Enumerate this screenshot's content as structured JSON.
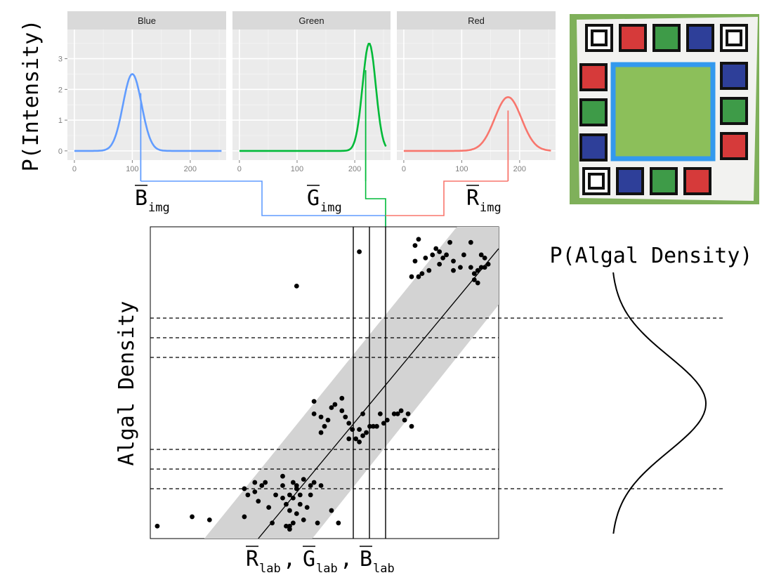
{
  "colors": {
    "blue": "#619CFF",
    "green": "#00BA38",
    "red": "#F8766D",
    "panel_bg": "#EBEBEB",
    "strip_bg": "#D9D9D9",
    "band": "#D3D3D3",
    "photo_border": "#3399EE"
  },
  "histograms": {
    "y_axis_label": "P(Intensity)",
    "y_ticks": [
      "0",
      "1",
      "2",
      "3"
    ],
    "x_ticks": [
      "0",
      "100",
      "200"
    ],
    "panels": [
      {
        "name": "Blue",
        "color": "blue",
        "mean": 100,
        "sd": 16,
        "peak": 2.5,
        "mean_label_main": "B",
        "mean_label_sub": "img"
      },
      {
        "name": "Green",
        "color": "green",
        "mean": 225,
        "sd": 11.5,
        "peak": 3.5,
        "mean_label_main": "G",
        "mean_label_sub": "img"
      },
      {
        "name": "Red",
        "color": "red",
        "mean": 180,
        "sd": 23,
        "peak": 1.75,
        "mean_label_main": "R",
        "mean_label_sub": "img"
      }
    ]
  },
  "scatter": {
    "y_label": "Algal Density",
    "x_label": {
      "parts": [
        {
          "main": "R",
          "sub": "lab"
        },
        {
          "main": "G",
          "sub": "lab"
        },
        {
          "main": "B",
          "sub": "lab"
        }
      ],
      "separator": ","
    },
    "points": [
      [
        0.02,
        0.04
      ],
      [
        0.12,
        0.07
      ],
      [
        0.17,
        0.06
      ],
      [
        0.27,
        0.07
      ],
      [
        0.27,
        0.16
      ],
      [
        0.28,
        0.14
      ],
      [
        0.3,
        0.15
      ],
      [
        0.3,
        0.18
      ],
      [
        0.31,
        0.12
      ],
      [
        0.32,
        0.17
      ],
      [
        0.33,
        0.18
      ],
      [
        0.34,
        0.1
      ],
      [
        0.35,
        0.05
      ],
      [
        0.36,
        0.14
      ],
      [
        0.38,
        0.13
      ],
      [
        0.38,
        0.17
      ],
      [
        0.39,
        0.11
      ],
      [
        0.38,
        0.2
      ],
      [
        0.4,
        0.14
      ],
      [
        0.41,
        0.13
      ],
      [
        0.4,
        0.09
      ],
      [
        0.41,
        0.18
      ],
      [
        0.42,
        0.17
      ],
      [
        0.42,
        0.16
      ],
      [
        0.43,
        0.14
      ],
      [
        0.43,
        0.11
      ],
      [
        0.44,
        0.19
      ],
      [
        0.45,
        0.1
      ],
      [
        0.46,
        0.14
      ],
      [
        0.46,
        0.17
      ],
      [
        0.47,
        0.18
      ],
      [
        0.44,
        0.06
      ],
      [
        0.4,
        0.04
      ],
      [
        0.49,
        0.17
      ],
      [
        0.48,
        0.05
      ],
      [
        0.39,
        0.04
      ],
      [
        0.4,
        0.03
      ],
      [
        0.41,
        0.05
      ],
      [
        0.42,
        0.08
      ],
      [
        0.52,
        0.09
      ],
      [
        0.54,
        0.05
      ],
      [
        0.47,
        0.4
      ],
      [
        0.49,
        0.39
      ],
      [
        0.47,
        0.44
      ],
      [
        0.49,
        0.34
      ],
      [
        0.51,
        0.38
      ],
      [
        0.5,
        0.36
      ],
      [
        0.52,
        0.42
      ],
      [
        0.53,
        0.43
      ],
      [
        0.55,
        0.45
      ],
      [
        0.56,
        0.39
      ],
      [
        0.57,
        0.37
      ],
      [
        0.55,
        0.41
      ],
      [
        0.58,
        0.35
      ],
      [
        0.57,
        0.32
      ],
      [
        0.59,
        0.32
      ],
      [
        0.61,
        0.4
      ],
      [
        0.62,
        0.34
      ],
      [
        0.63,
        0.36
      ],
      [
        0.64,
        0.36
      ],
      [
        0.65,
        0.36
      ],
      [
        0.66,
        0.4
      ],
      [
        0.67,
        0.37
      ],
      [
        0.68,
        0.38
      ],
      [
        0.7,
        0.4
      ],
      [
        0.71,
        0.4
      ],
      [
        0.72,
        0.41
      ],
      [
        0.73,
        0.38
      ],
      [
        0.74,
        0.4
      ],
      [
        0.75,
        0.36
      ],
      [
        0.61,
        0.33
      ],
      [
        0.6,
        0.35
      ],
      [
        0.6,
        0.31
      ],
      [
        0.42,
        0.81
      ],
      [
        0.6,
        0.92
      ],
      [
        0.75,
        0.84
      ],
      [
        0.76,
        0.89
      ],
      [
        0.77,
        0.84
      ],
      [
        0.78,
        0.85
      ],
      [
        0.76,
        0.94
      ],
      [
        0.77,
        0.96
      ],
      [
        0.79,
        0.9
      ],
      [
        0.8,
        0.86
      ],
      [
        0.81,
        0.91
      ],
      [
        0.82,
        0.93
      ],
      [
        0.83,
        0.88
      ],
      [
        0.83,
        0.92
      ],
      [
        0.84,
        0.9
      ],
      [
        0.85,
        0.91
      ],
      [
        0.86,
        0.95
      ],
      [
        0.87,
        0.89
      ],
      [
        0.87,
        0.86
      ],
      [
        0.89,
        0.87
      ],
      [
        0.9,
        0.91
      ],
      [
        0.92,
        0.95
      ],
      [
        0.92,
        0.87
      ],
      [
        0.93,
        0.85
      ],
      [
        0.94,
        0.86
      ],
      [
        0.95,
        0.87
      ],
      [
        0.96,
        0.9
      ],
      [
        0.94,
        0.82
      ],
      [
        0.93,
        0.83
      ],
      [
        0.95,
        0.91
      ],
      [
        0.96,
        0.87
      ],
      [
        0.97,
        0.88
      ]
    ]
  },
  "density": {
    "label": "P(Algal Density)"
  },
  "photo": {
    "top_row": [
      "white",
      "red",
      "green",
      "blue",
      "white"
    ],
    "left_col": [
      "red",
      "green",
      "blue"
    ],
    "right_col": [
      "blue",
      "green",
      "red"
    ],
    "bottom_row": [
      "white",
      "blue",
      "green",
      "red"
    ],
    "center_fill": "#8CBF5A"
  }
}
